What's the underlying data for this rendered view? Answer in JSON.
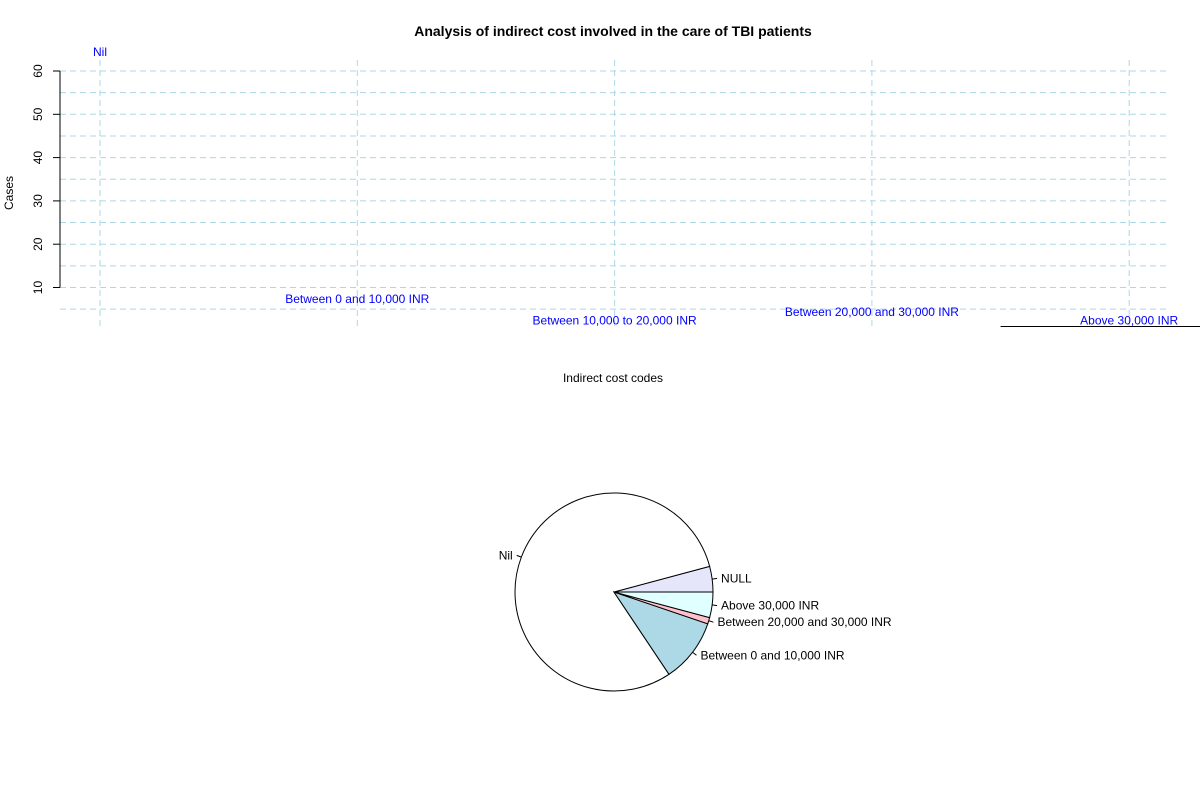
{
  "chart_data": [
    {
      "type": "bar",
      "title": "Analysis of indirect cost involved in the care of TBI patients",
      "xlabel": "Indirect cost codes",
      "ylabel": "Cases",
      "ylim": [
        5,
        64
      ],
      "yticks": [
        "10",
        "20",
        "30",
        "40",
        "50",
        "60"
      ],
      "grid": true,
      "grid_color": "#add8e6",
      "label_color": "#0000ff",
      "categories": [
        "Nil",
        "Between 0 and 10,000 INR",
        "Between 10,000 to 20,000 INR",
        "Between 20,000 and 30,000 INR",
        "Above 30,000 INR"
      ],
      "values": [
        63,
        6,
        1,
        3,
        1
      ]
    },
    {
      "type": "pie",
      "labels": [
        "NULL",
        "Nil",
        "Between 0 and 10,000 INR",
        "Between 20,000 and 30,000 INR",
        "Above 30,000 INR"
      ],
      "values": [
        4,
        77,
        10,
        1,
        4
      ],
      "colors": [
        "#e6e6fa",
        "#ffffff",
        "#add8e6",
        "#ffc0cb",
        "#e0ffff"
      ]
    }
  ]
}
